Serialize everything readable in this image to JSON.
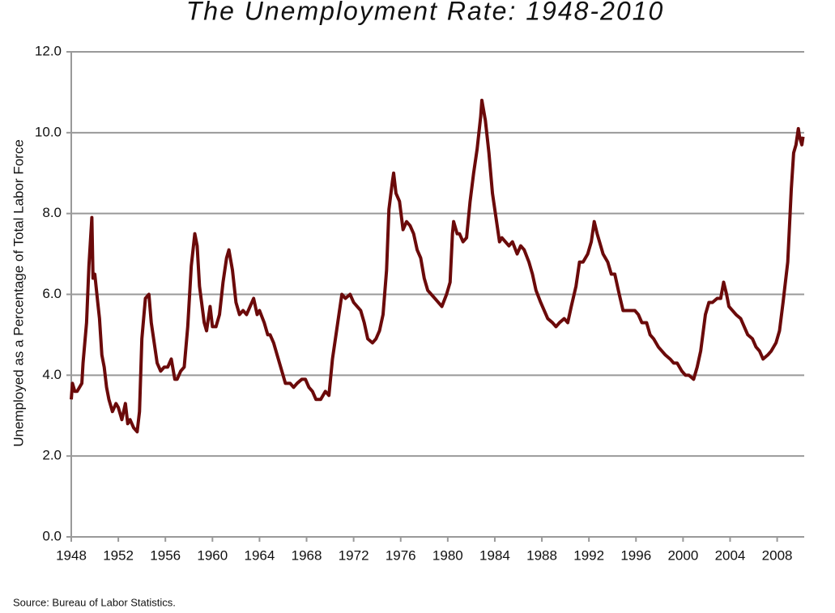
{
  "chart_data": {
    "type": "line",
    "title": "The Unemployment Rate: 1948-2010",
    "y_label": "Unemployed as a Percentage of Total Labor Force",
    "source": "Source: Bureau of Labor Statistics.",
    "color": "#6b0a0a",
    "grid": true,
    "xlim": [
      1948,
      2010.3
    ],
    "xticks": [
      1948,
      1952,
      1956,
      1960,
      1964,
      1968,
      1972,
      1976,
      1980,
      1984,
      1988,
      1992,
      1996,
      2000,
      2004,
      2008
    ],
    "ylim": [
      0,
      12
    ],
    "yticks": [
      {
        "value": 0,
        "label": "0.0"
      },
      {
        "value": 2,
        "label": "2.0"
      },
      {
        "value": 4,
        "label": "4.0"
      },
      {
        "value": 6,
        "label": "6.0"
      },
      {
        "value": 8,
        "label": "8.0"
      },
      {
        "value": 10,
        "label": "10.0"
      },
      {
        "value": 12,
        "label": "12.0"
      }
    ],
    "x": [
      1948.0,
      1948.1,
      1948.3,
      1948.5,
      1948.9,
      1949.0,
      1949.3,
      1949.5,
      1949.75,
      1949.85,
      1950.0,
      1950.25,
      1950.4,
      1950.6,
      1950.8,
      1951.0,
      1951.2,
      1951.5,
      1951.8,
      1952.0,
      1952.3,
      1952.6,
      1952.8,
      1953.0,
      1953.3,
      1953.6,
      1953.8,
      1954.0,
      1954.3,
      1954.6,
      1954.8,
      1955.0,
      1955.3,
      1955.6,
      1955.9,
      1956.2,
      1956.5,
      1956.8,
      1957.0,
      1957.3,
      1957.6,
      1957.9,
      1958.2,
      1958.5,
      1958.7,
      1958.9,
      1959.3,
      1959.5,
      1959.8,
      1960.0,
      1960.3,
      1960.6,
      1960.9,
      1961.2,
      1961.4,
      1961.7,
      1962.0,
      1962.3,
      1962.6,
      1962.9,
      1963.2,
      1963.5,
      1963.8,
      1964.0,
      1964.4,
      1964.7,
      1964.9,
      1965.2,
      1965.5,
      1965.9,
      1966.2,
      1966.6,
      1966.9,
      1967.2,
      1967.6,
      1967.9,
      1968.2,
      1968.5,
      1968.8,
      1969.2,
      1969.6,
      1969.9,
      1970.2,
      1970.5,
      1970.8,
      1971.0,
      1971.3,
      1971.7,
      1972.0,
      1972.3,
      1972.6,
      1972.9,
      1973.2,
      1973.6,
      1973.9,
      1974.2,
      1974.5,
      1974.8,
      1975.0,
      1975.3,
      1975.4,
      1975.6,
      1975.9,
      1976.2,
      1976.5,
      1976.8,
      1977.1,
      1977.4,
      1977.7,
      1978.0,
      1978.3,
      1978.6,
      1978.9,
      1979.2,
      1979.5,
      1979.9,
      1980.2,
      1980.4,
      1980.5,
      1980.8,
      1981.0,
      1981.3,
      1981.6,
      1981.9,
      1982.2,
      1982.5,
      1982.8,
      1982.9,
      1983.2,
      1983.5,
      1983.8,
      1984.1,
      1984.4,
      1984.6,
      1984.9,
      1985.2,
      1985.5,
      1985.9,
      1986.2,
      1986.5,
      1986.9,
      1987.2,
      1987.5,
      1987.9,
      1988.2,
      1988.5,
      1988.9,
      1989.2,
      1989.5,
      1989.9,
      1990.2,
      1990.5,
      1990.9,
      1991.2,
      1991.5,
      1991.9,
      1992.2,
      1992.45,
      1992.7,
      1992.9,
      1993.2,
      1993.6,
      1993.9,
      1994.2,
      1994.5,
      1994.9,
      1995.2,
      1995.5,
      1995.9,
      1996.2,
      1996.5,
      1996.9,
      1997.2,
      1997.5,
      1997.9,
      1998.2,
      1998.5,
      1998.9,
      1999.2,
      1999.5,
      1999.9,
      2000.2,
      2000.5,
      2000.9,
      2001.2,
      2001.5,
      2001.9,
      2002.2,
      2002.5,
      2002.9,
      2003.2,
      2003.45,
      2003.7,
      2003.9,
      2004.2,
      2004.5,
      2004.9,
      2005.2,
      2005.5,
      2005.9,
      2006.2,
      2006.5,
      2006.8,
      2007.2,
      2007.5,
      2007.9,
      2008.2,
      2008.5,
      2008.9,
      2009.2,
      2009.4,
      2009.6,
      2009.8,
      2009.9,
      2010.1,
      2010.2
    ],
    "values": [
      3.4,
      3.8,
      3.6,
      3.6,
      3.8,
      4.3,
      5.3,
      6.7,
      7.9,
      6.4,
      6.5,
      5.8,
      5.4,
      4.5,
      4.2,
      3.7,
      3.4,
      3.1,
      3.3,
      3.2,
      2.9,
      3.3,
      2.8,
      2.9,
      2.7,
      2.6,
      3.1,
      4.9,
      5.9,
      6.0,
      5.3,
      4.9,
      4.3,
      4.1,
      4.2,
      4.2,
      4.4,
      3.9,
      3.9,
      4.1,
      4.2,
      5.2,
      6.7,
      7.5,
      7.2,
      6.2,
      5.3,
      5.1,
      5.7,
      5.2,
      5.2,
      5.5,
      6.3,
      6.9,
      7.1,
      6.6,
      5.8,
      5.5,
      5.6,
      5.5,
      5.7,
      5.9,
      5.5,
      5.6,
      5.3,
      5.0,
      5.0,
      4.8,
      4.5,
      4.1,
      3.8,
      3.8,
      3.7,
      3.8,
      3.9,
      3.9,
      3.7,
      3.6,
      3.4,
      3.4,
      3.6,
      3.5,
      4.4,
      5.0,
      5.6,
      6.0,
      5.9,
      6.0,
      5.8,
      5.7,
      5.6,
      5.3,
      4.9,
      4.8,
      4.9,
      5.1,
      5.5,
      6.6,
      8.1,
      8.8,
      9.0,
      8.5,
      8.3,
      7.6,
      7.8,
      7.7,
      7.5,
      7.1,
      6.9,
      6.4,
      6.1,
      6.0,
      5.9,
      5.8,
      5.7,
      6.0,
      6.3,
      7.5,
      7.8,
      7.5,
      7.5,
      7.3,
      7.4,
      8.3,
      9.0,
      9.6,
      10.4,
      10.8,
      10.3,
      9.5,
      8.5,
      7.9,
      7.3,
      7.4,
      7.3,
      7.2,
      7.3,
      7.0,
      7.2,
      7.1,
      6.8,
      6.5,
      6.1,
      5.8,
      5.6,
      5.4,
      5.3,
      5.2,
      5.3,
      5.4,
      5.3,
      5.7,
      6.2,
      6.8,
      6.8,
      7.0,
      7.3,
      7.8,
      7.5,
      7.3,
      7.0,
      6.8,
      6.5,
      6.5,
      6.1,
      5.6,
      5.6,
      5.6,
      5.6,
      5.5,
      5.3,
      5.3,
      5.0,
      4.9,
      4.7,
      4.6,
      4.5,
      4.4,
      4.3,
      4.3,
      4.1,
      4.0,
      4.0,
      3.9,
      4.2,
      4.6,
      5.5,
      5.8,
      5.8,
      5.9,
      5.9,
      6.3,
      6.0,
      5.7,
      5.6,
      5.5,
      5.4,
      5.2,
      5.0,
      4.9,
      4.7,
      4.6,
      4.4,
      4.5,
      4.6,
      4.8,
      5.1,
      5.8,
      6.8,
      8.6,
      9.5,
      9.7,
      10.1,
      9.9,
      9.7,
      9.9
    ]
  }
}
